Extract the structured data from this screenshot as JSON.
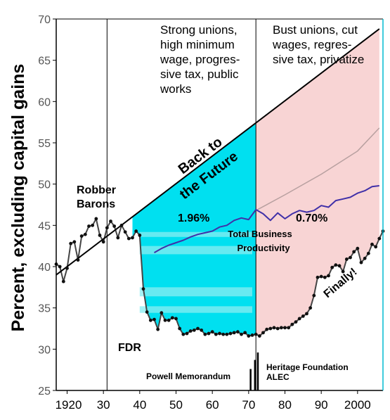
{
  "chart_data": {
    "type": "line",
    "ylabel": "Percent, excluding capital gains",
    "xlim": [
      1917,
      2007
    ],
    "ylim": [
      25,
      70
    ],
    "y_ticks": [
      "25",
      "30",
      "35",
      "40",
      "45",
      "50",
      "55",
      "60",
      "65",
      "70"
    ],
    "x_ticks": [
      {
        "value": 1920,
        "label": "1920"
      },
      {
        "value": 1930,
        "label": "30"
      },
      {
        "value": 1940,
        "label": "40"
      },
      {
        "value": 1950,
        "label": "50"
      },
      {
        "value": 1960,
        "label": "60"
      },
      {
        "value": 1970,
        "label": "70"
      },
      {
        "value": 1980,
        "label": "80"
      },
      {
        "value": 1990,
        "label": "90"
      },
      {
        "value": 2000,
        "label": "2000"
      }
    ],
    "era_dividers": [
      1931,
      1972
    ],
    "era_labels": {
      "strong_unions": [
        "Strong unions,",
        "high minimum",
        "wage, progres-",
        "sive tax, public",
        "works"
      ],
      "bust_unions": [
        "Bust unions, cut",
        "wages, regres-",
        "sive tax, privatize"
      ]
    },
    "annotations": {
      "robber_barons": [
        "Robber",
        "Barons"
      ],
      "back_to_future": [
        "Back to",
        "the Future"
      ],
      "fdr": "FDR",
      "rate_before": "1.96%",
      "rate_after": "0.70%",
      "productivity_label": [
        "Total Business",
        "Productivity"
      ],
      "finally": "Finally!",
      "powell": "Powell Memorandum",
      "heritage": [
        "Heritage Foundation",
        "ALEC"
      ]
    },
    "series": [
      {
        "color": "#444444",
        "marker_color": "#111111",
        "x": [
          1917,
          1918,
          1919,
          1920,
          1921,
          1922,
          1923,
          1924,
          1925,
          1926,
          1927,
          1928,
          1929,
          1930,
          1931,
          1932,
          1933,
          1934,
          1935,
          1936,
          1937,
          1938,
          1939,
          1940,
          1941,
          1942,
          1943,
          1944,
          1945,
          1946,
          1947,
          1948,
          1949,
          1950,
          1951,
          1952,
          1953,
          1954,
          1955,
          1956,
          1957,
          1958,
          1959,
          1960,
          1961,
          1962,
          1963,
          1964,
          1965,
          1966,
          1967,
          1968,
          1969,
          1970,
          1971,
          1972,
          1973,
          1974,
          1975,
          1976,
          1977,
          1978,
          1979,
          1980,
          1981,
          1982,
          1983,
          1984,
          1985,
          1986,
          1987,
          1988,
          1989,
          1990,
          1991,
          1992,
          1993,
          1994,
          1995,
          1996,
          1997,
          1998,
          1999,
          2000,
          2001,
          2002,
          2003,
          2004,
          2005,
          2006,
          2007
        ],
        "y": [
          40.3,
          40.0,
          38.2,
          39.8,
          42.8,
          43.0,
          40.8,
          43.7,
          43.9,
          44.9,
          45.0,
          45.8,
          43.8,
          43.0,
          44.7,
          45.5,
          44.9,
          43.5,
          45.0,
          44.2,
          43.4,
          43.5,
          44.3,
          43.8,
          37.3,
          34.5,
          33.5,
          33.6,
          32.4,
          34.4,
          33.5,
          33.5,
          33.8,
          33.7,
          32.5,
          31.8,
          31.9,
          32.2,
          32.3,
          32.5,
          32.3,
          31.8,
          31.9,
          32.1,
          31.8,
          31.9,
          31.8,
          31.8,
          31.9,
          32.0,
          32.1,
          31.8,
          32.0,
          31.6,
          31.7,
          31.8,
          31.6,
          32.0,
          32.4,
          32.5,
          32.6,
          32.5,
          32.6,
          32.6,
          32.6,
          33.0,
          33.3,
          33.7,
          34.0,
          34.3,
          35.0,
          36.5,
          38.7,
          38.8,
          38.7,
          38.9,
          39.9,
          40.2,
          40.1,
          39.4,
          40.9,
          41.1,
          41.8,
          42.2,
          40.5,
          41.0,
          41.6,
          42.7,
          42.4,
          43.4,
          44.3
        ]
      },
      {
        "color": "#4030a8",
        "x": [
          1944,
          1946,
          1948,
          1950,
          1952,
          1954,
          1956,
          1958,
          1960,
          1962,
          1964,
          1966,
          1968,
          1970,
          1972,
          1974,
          1976,
          1978,
          1980,
          1982,
          1984,
          1986,
          1988,
          1990,
          1992,
          1994,
          1996,
          1998,
          2000,
          2002,
          2004,
          2006
        ],
        "y": [
          41.7,
          42.2,
          42.6,
          42.9,
          43.2,
          43.6,
          43.9,
          44.1,
          44.3,
          44.8,
          45.0,
          45.6,
          45.9,
          45.7,
          46.9,
          46.4,
          45.6,
          46.5,
          45.8,
          46.4,
          46.8,
          46.6,
          46.8,
          47.4,
          47.2,
          48.0,
          48.2,
          48.4,
          48.9,
          49.2,
          49.7,
          49.8
        ]
      },
      {
        "color": "#b8a0a0",
        "x": [
          1972,
          1980,
          1990,
          2000,
          2006
        ],
        "y": [
          46.8,
          48.7,
          51.2,
          54.0,
          56.8
        ]
      },
      {
        "color": "#000000",
        "x": [
          1917,
          2006
        ],
        "y": [
          39.0,
          68.8
        ]
      }
    ]
  }
}
